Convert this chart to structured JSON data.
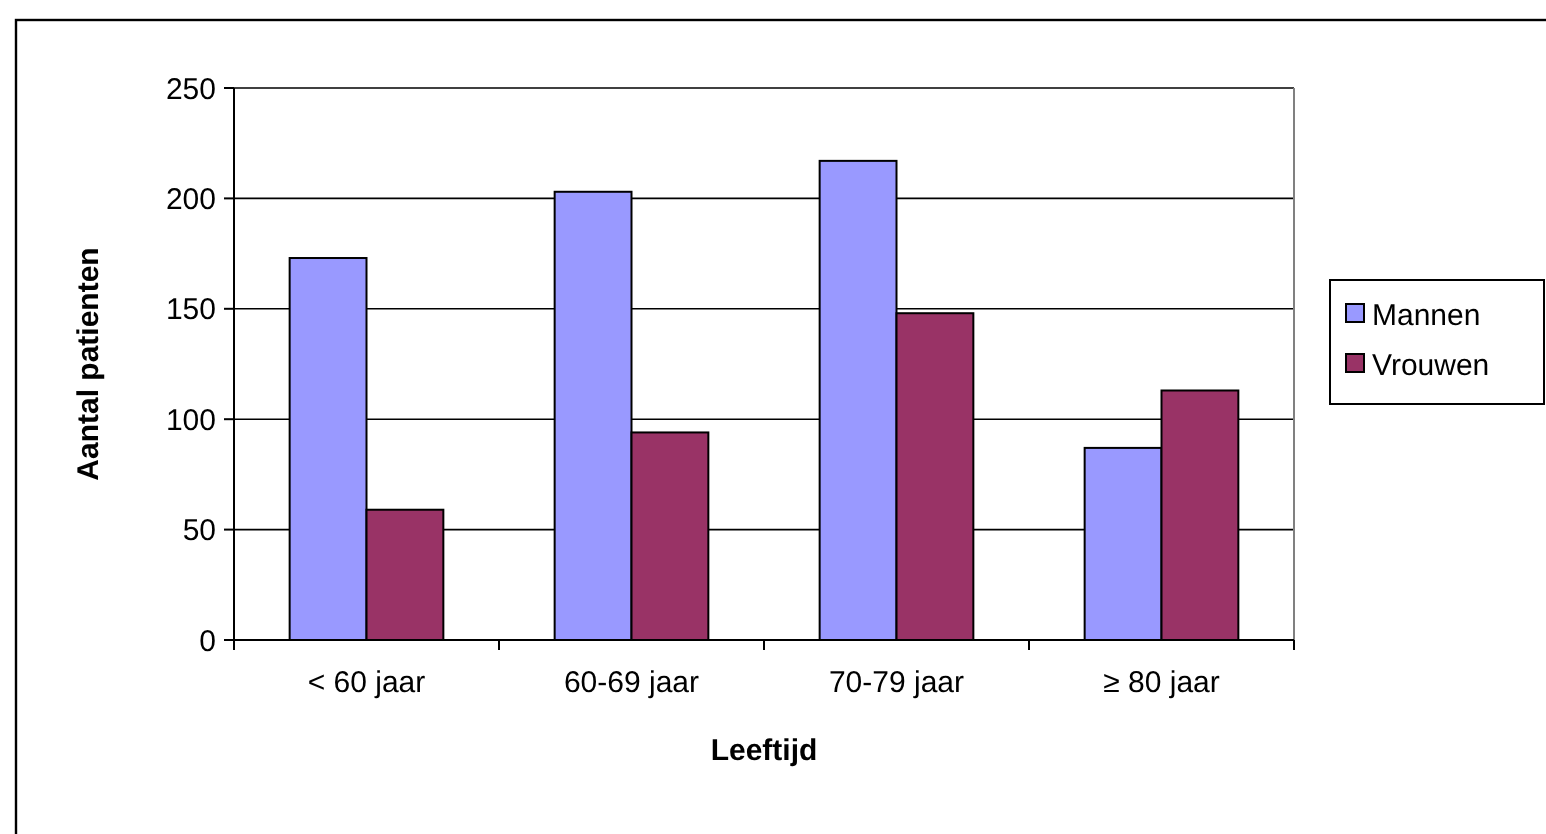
{
  "chart_data": {
    "type": "bar",
    "xlabel": "Leeftijd",
    "ylabel": "Aantal patienten",
    "categories": [
      "< 60 jaar",
      "60-69 jaar",
      "70-79 jaar",
      "≥ 80 jaar"
    ],
    "series": [
      {
        "name": "Mannen",
        "color": "#9999ff",
        "values": [
          173,
          203,
          217,
          87
        ]
      },
      {
        "name": "Vrouwen",
        "color": "#993366",
        "values": [
          59,
          94,
          148,
          113
        ]
      }
    ],
    "ylim": [
      0,
      250
    ],
    "yticks": [
      0,
      50,
      100,
      150,
      200,
      250
    ],
    "grid": "y",
    "legend": "right"
  }
}
